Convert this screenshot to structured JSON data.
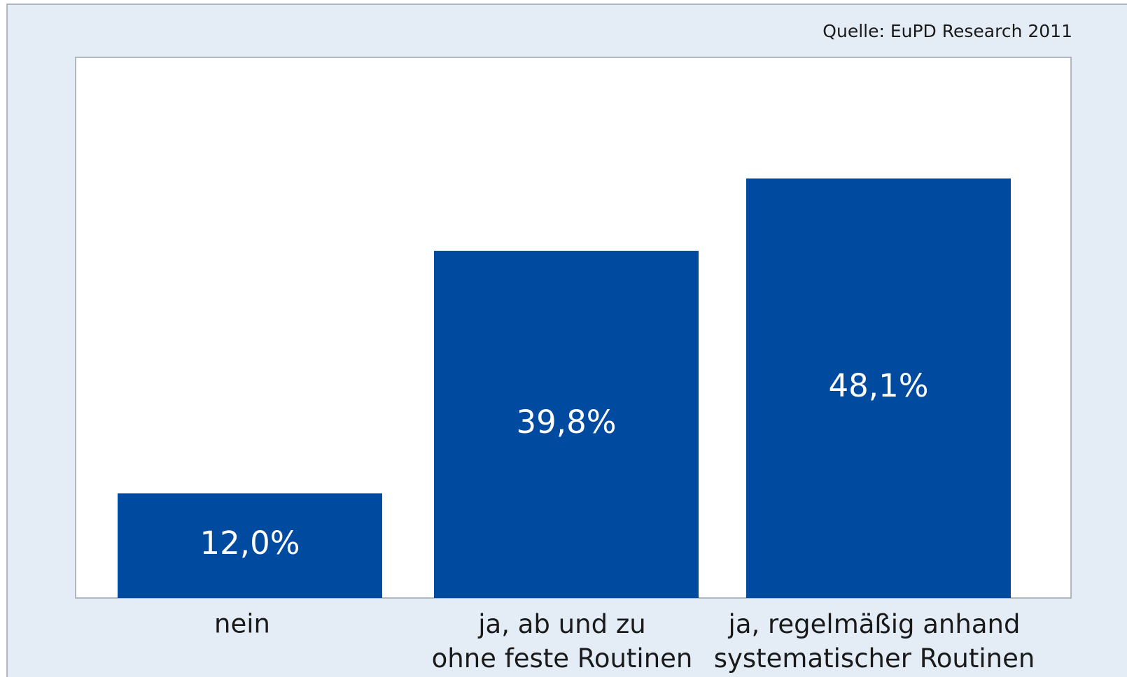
{
  "chart_data": {
    "type": "bar",
    "source": "Quelle: EuPD Research 2011",
    "categories": [
      "nein",
      "ja, ab und zu\nohne feste Routinen",
      "ja, regelmäßig anhand\nsystematischer Routinen"
    ],
    "values": [
      12.0,
      39.8,
      48.1
    ],
    "value_labels": [
      "12,0%",
      "39,8%",
      "48,1%"
    ],
    "color": "#004a9f",
    "ylim": [
      0,
      62
    ]
  }
}
